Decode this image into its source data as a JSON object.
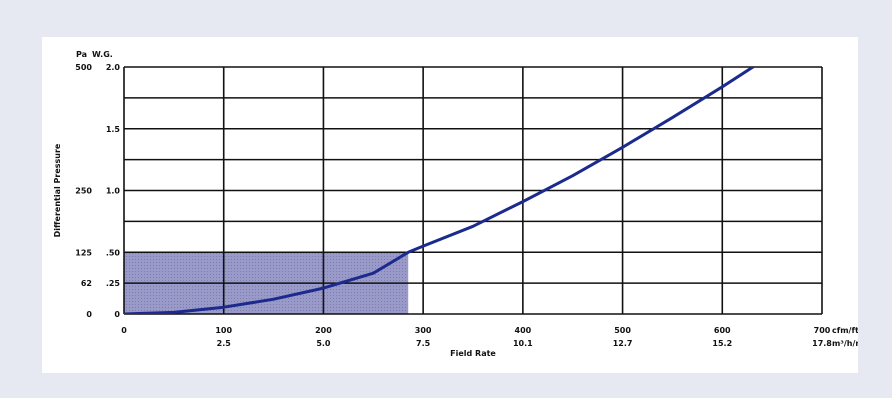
{
  "chart_data": {
    "type": "area",
    "title": "",
    "xlabel": "Field Rate",
    "ylabel": "Differential Pressure",
    "y_unit_outer": "Pa",
    "y_unit_inner": "W.G.",
    "x_unit_top": "cfm/ft²",
    "x_unit_bottom": "m³/h/m²",
    "xlim": [
      0,
      700
    ],
    "ylim": [
      0,
      2.0
    ],
    "x_ticks_top": [
      "0",
      "100",
      "200",
      "300",
      "400",
      "500",
      "600",
      "700"
    ],
    "x_ticks_bottom": [
      "",
      "2.5",
      "5.0",
      "7.5",
      "10.1",
      "12.7",
      "15.2",
      "17.8"
    ],
    "y_ticks_inner": [
      {
        "value": 0,
        "label": "0"
      },
      {
        "value": 0.25,
        "label": ".25"
      },
      {
        "value": 0.5,
        "label": ".50"
      },
      {
        "value": 1.0,
        "label": "1.0"
      },
      {
        "value": 1.5,
        "label": "1.5"
      },
      {
        "value": 2.0,
        "label": "2.0"
      }
    ],
    "y_ticks_outer": [
      {
        "value": 0,
        "label": "0"
      },
      {
        "value": 0.25,
        "label": "62"
      },
      {
        "value": 0.5,
        "label": "125"
      },
      {
        "value": 1.0,
        "label": "250"
      },
      {
        "value": 2.0,
        "label": "500"
      }
    ],
    "grid": true,
    "series": [
      {
        "x": [
          0,
          50,
          100,
          150,
          200,
          250,
          285,
          300,
          350,
          400,
          450,
          500,
          550,
          600,
          650
        ],
        "values": [
          0,
          0.013,
          0.055,
          0.12,
          0.21,
          0.33,
          0.5,
          0.55,
          0.71,
          0.91,
          1.12,
          1.35,
          1.59,
          1.84,
          2.1
        ],
        "color": "#1b2a8c"
      }
    ],
    "shaded_region": {
      "x": [
        0,
        285
      ],
      "y": [
        0,
        0.5
      ],
      "color": "#9a9ac8"
    }
  }
}
